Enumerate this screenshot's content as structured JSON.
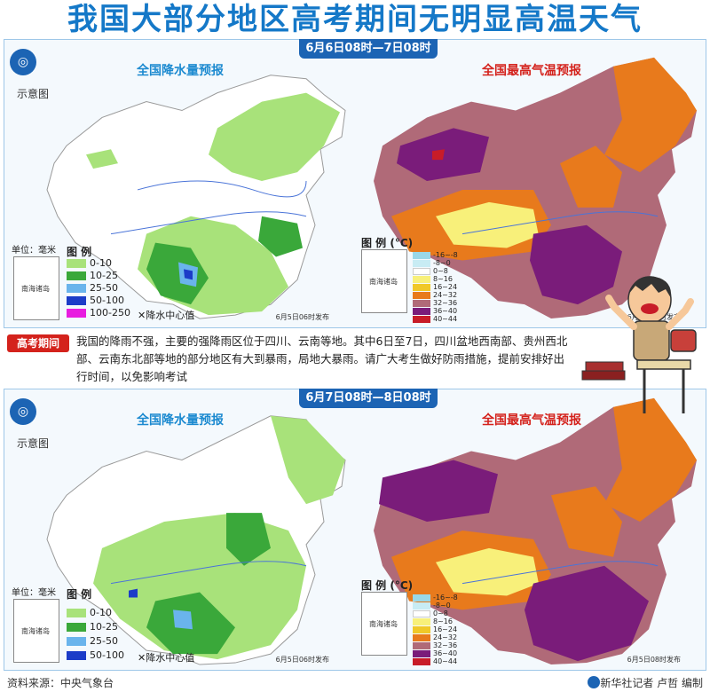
{
  "title": "我国大部分地区高考期间无明显高温天气",
  "sketch_label": "示意图",
  "rain_map_title": "全国降水量预报",
  "temp_map_title": "全国最高气温预报",
  "inset_label": "南海诸岛",
  "unit_label": "单位：毫米",
  "rain_legend_heading": "图 例",
  "temp_legend_heading": "图 例 (°C)",
  "rain_center_note": "降水中心值",
  "periods": [
    {
      "date_range": "6月6日08时—7日08时",
      "rain_legend": [
        {
          "label": "0-10",
          "color": "#a8e27a"
        },
        {
          "label": "10-25",
          "color": "#3aa83a"
        },
        {
          "label": "25-50",
          "color": "#6ab4ec"
        },
        {
          "label": "50-100",
          "color": "#1c3cc8"
        },
        {
          "label": "100-250",
          "color": "#e81ce0"
        }
      ],
      "issued_rain": "6月5日06时发布",
      "issued_temp": "6月5日06时发布"
    },
    {
      "date_range": "6月7日08时—8日08时",
      "rain_legend": [
        {
          "label": "0-10",
          "color": "#a8e27a"
        },
        {
          "label": "10-25",
          "color": "#3aa83a"
        },
        {
          "label": "25-50",
          "color": "#6ab4ec"
        },
        {
          "label": "50-100",
          "color": "#1c3cc8"
        }
      ],
      "issued_rain": "6月5日06时发布",
      "issued_temp": "6月5日08时发布"
    }
  ],
  "temp_legend": [
    {
      "label": "-16~-8",
      "color": "#9ad8e8"
    },
    {
      "label": "-8~0",
      "color": "#c8ecf4"
    },
    {
      "label": "0~8",
      "color": "#ffffff"
    },
    {
      "label": "8~16",
      "color": "#f8f07a"
    },
    {
      "label": "16~24",
      "color": "#f0c828"
    },
    {
      "label": "24~32",
      "color": "#e87a1c"
    },
    {
      "label": "32~36",
      "color": "#b06a78"
    },
    {
      "label": "36~40",
      "color": "#7a1c7a"
    },
    {
      "label": "40~44",
      "color": "#c81c28"
    }
  ],
  "note": {
    "tag": "高考期间",
    "text": "我国的降雨不强，主要的强降雨区位于四川、云南等地。其中6日至7日，四川盆地西南部、贵州西北部、云南东北部等地的部分地区有大到暴雨，局地大暴雨。请广大考生做好防雨措施，提前安排好出行时间，以免影响考试"
  },
  "footer": {
    "source": "资料来源：中央气象台",
    "credit": "新华社记者 卢哲 编制"
  },
  "colors": {
    "title_blue": "#1478c8",
    "tab_blue": "#1c64b4",
    "tag_red": "#d4221c"
  }
}
